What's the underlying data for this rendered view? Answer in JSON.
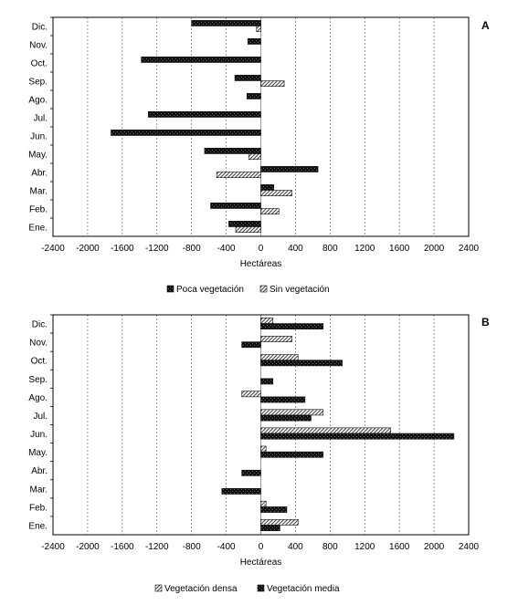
{
  "chart_data": [
    {
      "type": "bar",
      "orientation": "horizontal",
      "panel_label": "A",
      "categories": [
        "Dic.",
        "Nov.",
        "Oct.",
        "Sep.",
        "Ago.",
        "Jul.",
        "Jun.",
        "May.",
        "Abr.",
        "Mar.",
        "Feb.",
        "Ene."
      ],
      "series": [
        {
          "name": "Poca vegetación",
          "pattern": "dark",
          "values": [
            -800,
            -150,
            -1380,
            -300,
            -160,
            -1300,
            -1730,
            -650,
            660,
            150,
            -580,
            -370
          ]
        },
        {
          "name": "Sin vegetación",
          "pattern": "hatch",
          "values": [
            -50,
            0,
            0,
            270,
            0,
            0,
            0,
            -140,
            -510,
            360,
            210,
            -290
          ]
        }
      ],
      "xlabel": "Hectáreas",
      "xlim": [
        -2400,
        2400
      ],
      "xticks": [
        "-2400",
        "-2000",
        "-1600",
        "-1200",
        "-800",
        "-400",
        "0",
        "400",
        "800",
        "1200",
        "1600",
        "2000",
        "2400"
      ],
      "grid": "vertical dashed",
      "legend_position": "bottom"
    },
    {
      "type": "bar",
      "orientation": "horizontal",
      "panel_label": "B",
      "categories": [
        "Dic.",
        "Nov.",
        "Oct.",
        "Sep.",
        "Ago.",
        "Jul.",
        "Jun.",
        "May.",
        "Abr.",
        "Mar.",
        "Feb.",
        "Ene."
      ],
      "series": [
        {
          "name": "Vegetación densa",
          "pattern": "hatch",
          "values": [
            140,
            360,
            430,
            0,
            -220,
            720,
            1500,
            60,
            0,
            0,
            60,
            430
          ]
        },
        {
          "name": "Vegetación media",
          "pattern": "dark",
          "values": [
            720,
            -220,
            940,
            140,
            510,
            580,
            2230,
            720,
            -220,
            -450,
            300,
            220
          ]
        }
      ],
      "xlabel": "Hectáreas",
      "xlim": [
        -2400,
        2400
      ],
      "xticks": [
        "-2400",
        "-2000",
        "-1600",
        "-1200",
        "-800",
        "-400",
        "0",
        "400",
        "800",
        "1200",
        "1600",
        "2000",
        "2400"
      ],
      "grid": "vertical dashed",
      "legend_position": "bottom"
    }
  ]
}
